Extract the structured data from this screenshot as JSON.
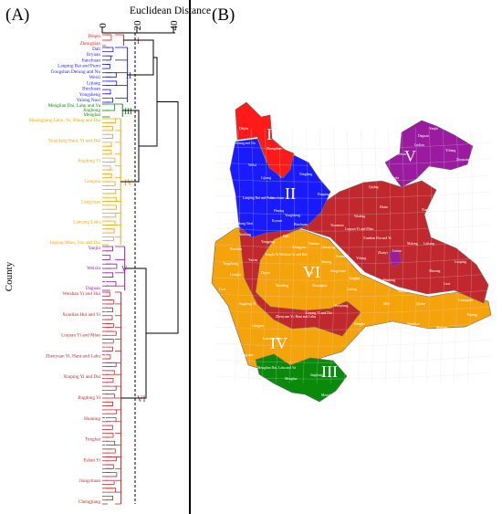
{
  "panel_a": {
    "label": "(A)",
    "axis_title": "Euclidean Distance",
    "y_label": "County",
    "ticks": [
      "0",
      "20",
      "40"
    ],
    "cluster_labels": [
      "I",
      "II",
      "III",
      "IV",
      "V",
      "VI"
    ],
    "counties": [
      {
        "name": "Dêqên",
        "cluster": "I"
      },
      {
        "name": "Zhongdian",
        "cluster": "I"
      },
      {
        "name": "Dali",
        "cluster": "II"
      },
      {
        "name": "Eryuan",
        "cluster": "II"
      },
      {
        "name": "Jianchuan",
        "cluster": "II"
      },
      {
        "name": "Lanping Bai and Pumi",
        "cluster": "II"
      },
      {
        "name": "Gongshan Derung and Nu",
        "cluster": "II"
      },
      {
        "name": "Weixi",
        "cluster": "II"
      },
      {
        "name": "Lijiang",
        "cluster": "II"
      },
      {
        "name": "Binchuan",
        "cluster": "II"
      },
      {
        "name": "Yongsheng",
        "cluster": "II"
      },
      {
        "name": "Yulong Naxi",
        "cluster": "II"
      },
      {
        "name": "Menglian Dai, Lahu and Va",
        "cluster": "III"
      },
      {
        "name": "Jinghong",
        "cluster": "III"
      },
      {
        "name": "Menghai",
        "cluster": "III"
      },
      {
        "name": "Shuangjiang Lahu, Va, Blang and Dai",
        "cluster": "IV"
      },
      {
        "name": "Yuanjiang Hani, Yi and Dai",
        "cluster": "IV"
      },
      {
        "name": "Jingdong Yi",
        "cluster": "IV"
      },
      {
        "name": "Gengma",
        "cluster": "IV"
      },
      {
        "name": "Cangyuan",
        "cluster": "IV"
      },
      {
        "name": "Lancang Lahu",
        "cluster": "IV"
      },
      {
        "name": "Jinping Miao, Yao and Dai",
        "cluster": "IV"
      },
      {
        "name": "Yanjin",
        "cluster": "V"
      },
      {
        "name": "Weixin",
        "cluster": "V"
      },
      {
        "name": "Daguan",
        "cluster": "V"
      },
      {
        "name": "Weishan Yi and Hui",
        "cluster": "VI"
      },
      {
        "name": "Xundian Hui and Yi",
        "cluster": "VI"
      },
      {
        "name": "Luquan Yi and Miao",
        "cluster": "VI"
      },
      {
        "name": "Zhenyuan Yi, Hani and Lahu",
        "cluster": "VI"
      },
      {
        "name": "Xinping Yi and Dai",
        "cluster": "VI"
      },
      {
        "name": "Jingdong Yi",
        "cluster": "VI"
      },
      {
        "name": "Huaning",
        "cluster": "VI"
      },
      {
        "name": "Tonghai",
        "cluster": "VI"
      },
      {
        "name": "Eshan Yi",
        "cluster": "VI"
      },
      {
        "name": "Jiangchuan",
        "cluster": "VI"
      },
      {
        "name": "Chengjiang",
        "cluster": "VI"
      }
    ]
  },
  "panel_b": {
    "label": "(B)",
    "region_labels": [
      "I",
      "II",
      "III",
      "IV",
      "V",
      "VI"
    ],
    "county_labels": [
      "Dêqên",
      "Zhongdian",
      "Gongshan Derung and Nu",
      "Weixi",
      "Lijiang",
      "Ninglang",
      "Lanping Bai and Pumi",
      "Jianchuan",
      "Heqing",
      "Yongsheng",
      "Huaping",
      "Yulong Naxi",
      "Eryuan",
      "Binchuan",
      "Dali",
      "Yongping",
      "Yunlong",
      "Baoshan",
      "Tengchong",
      "Lianghe",
      "Luxi",
      "Yangbi Yi",
      "Weishan Yi and Hui",
      "Xiangyun",
      "Nanhua",
      "Chuxiong",
      "Yuanmou",
      "Wuding",
      "Luquan Yi and Miao",
      "Xundian Hui and Yi",
      "Huize",
      "Xuanwei",
      "Qujing",
      "Zhanyi",
      "Malong",
      "Fuyuan",
      "Luliang",
      "Shizong",
      "Luoping",
      "Lunan",
      "Yiliang",
      "Kunming",
      "Jinning",
      "Yuxi",
      "Jiangchuan",
      "Tonghai",
      "Huaning",
      "Kaiyuan",
      "Mile",
      "Qiubei",
      "Luxi",
      "Guangnan",
      "Shuangbai",
      "Lufeng",
      "Mouding",
      "Dayao",
      "Yao'an",
      "Jingdong Yi",
      "Zhenyuan Yi, Hani and Lahu",
      "Xinping Yi and Dai",
      "Yuanjiang",
      "Honghe",
      "Jianshui",
      "Wenshan",
      "Maguan",
      "Funing",
      "Gengma",
      "Cangyuan",
      "Lancang Lahu",
      "Menglian Dai, Lahu and Va",
      "Jinghong",
      "Menghai",
      "Mengla",
      "Ludian",
      "Daguan",
      "Yanjin",
      "Yiliang",
      "Zhenxiong",
      "Weixin",
      "Qiaojia"
    ]
  },
  "colors": {
    "I": "#ff1a1a",
    "II": "#1a1aff",
    "III": "#0a8a0a",
    "IV": "#f5a30a",
    "V": "#9a1aa0",
    "VI": "#c1282d"
  }
}
